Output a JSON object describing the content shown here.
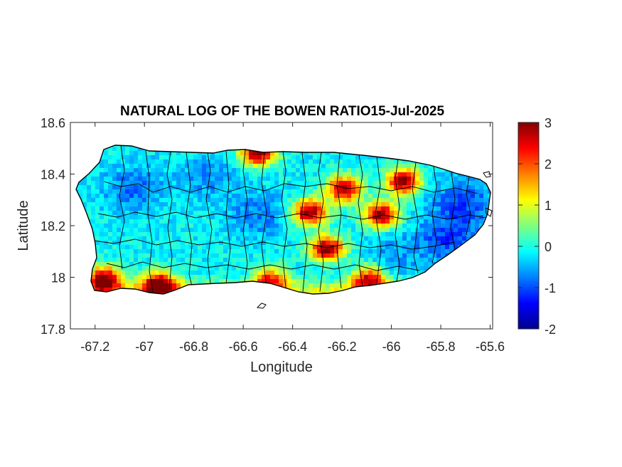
{
  "figure": {
    "title": "NATURAL LOG OF THE BOWEN RATIO15-Jul-2025",
    "xlabel": "Longitude",
    "ylabel": "Latitude"
  },
  "axes": {
    "x_ticks": [
      {
        "value": -67.2,
        "label": "-67.2"
      },
      {
        "value": -67.0,
        "label": "-67"
      },
      {
        "value": -66.8,
        "label": "-66.8"
      },
      {
        "value": -66.6,
        "label": "-66.6"
      },
      {
        "value": -66.4,
        "label": "-66.4"
      },
      {
        "value": -66.2,
        "label": "-66.2"
      },
      {
        "value": -66.0,
        "label": "-66"
      },
      {
        "value": -65.8,
        "label": "-65.8"
      },
      {
        "value": -65.6,
        "label": "-65.6"
      }
    ],
    "y_ticks": [
      {
        "value": 18.6,
        "label": "18.6"
      },
      {
        "value": 18.4,
        "label": "18.4"
      },
      {
        "value": 18.2,
        "label": "18.2"
      },
      {
        "value": 18.0,
        "label": "18"
      },
      {
        "value": 17.8,
        "label": "17.8"
      }
    ],
    "xlim": [
      -67.3,
      -65.59
    ],
    "ylim": [
      17.8,
      18.6
    ],
    "box": true,
    "grid": false
  },
  "colorbar": {
    "colormap": "jet",
    "range": [
      -2,
      3
    ],
    "ticks": [
      {
        "value": 3,
        "label": "3"
      },
      {
        "value": 2,
        "label": "2"
      },
      {
        "value": 1,
        "label": "1"
      },
      {
        "value": 0,
        "label": "0"
      },
      {
        "value": -1,
        "label": "-1"
      },
      {
        "value": -2,
        "label": "-2"
      }
    ],
    "placement": "right"
  },
  "colors": {
    "boundary": "#000000",
    "axis": "#262626",
    "background": "#ffffff"
  },
  "chart_data": {
    "type": "heatmap",
    "region": "Puerto Rico",
    "variable": "ln(Bowen ratio)",
    "date": "15-Jul-2025",
    "value_range": [
      -2,
      3
    ],
    "hotspots": [
      {
        "lon": -67.17,
        "lat": 18.0,
        "value": 3.0
      },
      {
        "lon": -66.95,
        "lat": 17.98,
        "value": 3.0
      },
      {
        "lon": -66.55,
        "lat": 18.49,
        "value": 3.0
      },
      {
        "lon": -66.34,
        "lat": 18.26,
        "value": 3.0
      },
      {
        "lon": -66.27,
        "lat": 18.12,
        "value": 3.0
      },
      {
        "lon": -66.2,
        "lat": 18.35,
        "value": 3.0
      },
      {
        "lon": -66.05,
        "lat": 18.25,
        "value": 3.0
      },
      {
        "lon": -65.96,
        "lat": 18.38,
        "value": 3.0
      },
      {
        "lon": -66.1,
        "lat": 18.0,
        "value": 2.5
      },
      {
        "lon": -66.5,
        "lat": 18.0,
        "value": 2.0
      }
    ],
    "coldspots": [
      {
        "lon": -67.05,
        "lat": 18.35,
        "value": -0.8
      },
      {
        "lon": -66.75,
        "lat": 18.4,
        "value": -0.6
      },
      {
        "lon": -66.55,
        "lat": 18.25,
        "value": -0.7
      },
      {
        "lon": -65.78,
        "lat": 18.15,
        "value": -1.0
      },
      {
        "lon": -65.72,
        "lat": 18.3,
        "value": -1.0
      },
      {
        "lon": -66.0,
        "lat": 18.1,
        "value": -0.5
      }
    ]
  }
}
